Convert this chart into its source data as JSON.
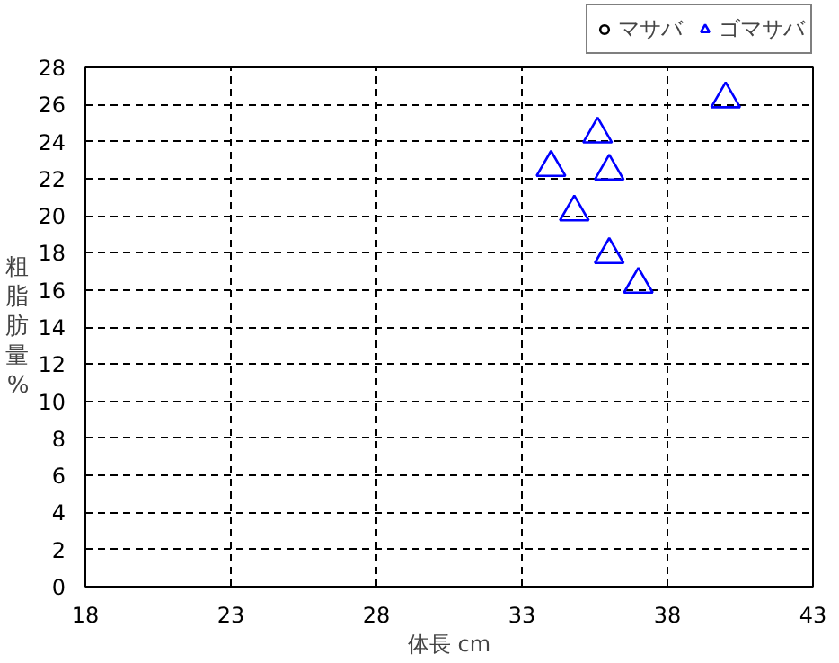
{
  "chart_data": {
    "type": "scatter",
    "xlabel": "体長 cm",
    "ylabel": "粗脂肪量%",
    "xlim": [
      18,
      43
    ],
    "xticks": [
      18,
      23,
      28,
      33,
      38,
      43
    ],
    "ylim": [
      0,
      28
    ],
    "yticks": [
      0,
      2,
      4,
      6,
      8,
      10,
      12,
      14,
      16,
      18,
      20,
      22,
      24,
      26,
      28
    ],
    "grid": true,
    "legend": "top right",
    "series": [
      {
        "name": "マサバ",
        "color": "#000000",
        "marker": "circle"
      },
      {
        "name": "ゴマサバ",
        "color": "#0000ff",
        "marker": "triangle",
        "x": [
          40.0,
          35.6,
          34.0,
          36.0,
          34.8,
          36.0,
          37.0
        ],
        "values": [
          26.3,
          24.4,
          22.6,
          22.4,
          20.2,
          17.9,
          16.3
        ]
      }
    ]
  }
}
